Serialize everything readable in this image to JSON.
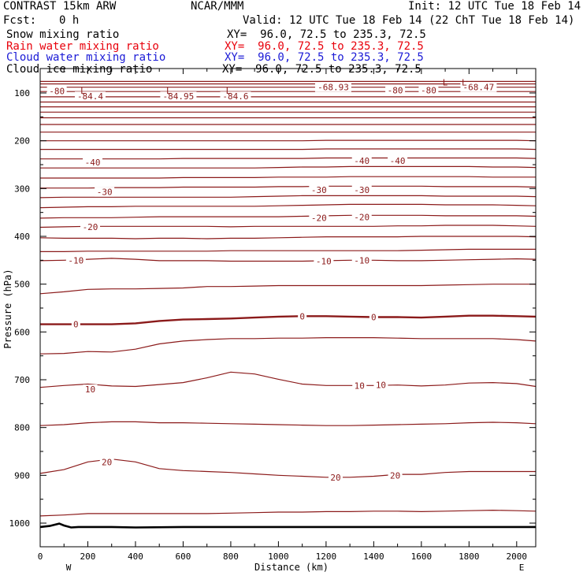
{
  "header": {
    "model": "CONTRAST 15km ARW",
    "org": "NCAR/MMM",
    "init": "Init: 12 UTC Tue 18 Feb 14",
    "fcst_label": "Fcst:",
    "fcst_value": "0 h",
    "valid": "Valid: 12 UTC Tue 18 Feb 14 (22 ChT Tue 18 Feb 14)",
    "fields": [
      {
        "name": "Snow mixing ratio",
        "xy": "XY=  96.0, 72.5 to 235.3, 72.5",
        "color": "#000000"
      },
      {
        "name": "Rain water mixing ratio",
        "xy": "XY=  96.0, 72.5 to 235.3, 72.5",
        "color": "#e8000b"
      },
      {
        "name": "Cloud water mixing ratio",
        "xy": "XY=  96.0, 72.5 to 235.3, 72.5",
        "color": "#1a1ad6"
      },
      {
        "name": "Cloud ice mixing ratio",
        "xy": "XY=  96.0, 72.5 to 235.3, 72.5",
        "color": "#000000"
      }
    ]
  },
  "chart_data": {
    "type": "line",
    "xlabel": "Distance (km)",
    "ylabel": "Pressure (hPa)",
    "xlim": [
      0,
      2080
    ],
    "ylim": [
      1050,
      70
    ],
    "x_ticks": [
      0,
      200,
      400,
      600,
      800,
      1000,
      1200,
      1400,
      1600,
      1800,
      2000
    ],
    "y_ticks": [
      100,
      200,
      300,
      400,
      500,
      600,
      700,
      800,
      900,
      1000
    ],
    "endpoints": {
      "left": "W",
      "right": "E"
    },
    "contour_color": "#8b1a1a",
    "terrain_color": "#000000",
    "contour_x": [
      0,
      100,
      200,
      300,
      400,
      500,
      600,
      700,
      800,
      900,
      1000,
      1100,
      1200,
      1300,
      1400,
      1500,
      1600,
      1700,
      1800,
      1900,
      2000,
      2080
    ],
    "contours": [
      {
        "value": "20",
        "p": [
          985,
          983,
          980,
          980,
          980,
          980,
          980,
          980,
          979,
          978,
          977,
          977,
          976,
          976,
          975,
          975,
          976,
          975,
          974,
          973,
          974,
          975
        ]
      },
      {
        "value": "20",
        "p": [
          896,
          888,
          872,
          866,
          872,
          886,
          890,
          892,
          894,
          897,
          900,
          902,
          904,
          904,
          902,
          898,
          898,
          894,
          892,
          892,
          892,
          892
        ]
      },
      {
        "value": "10",
        "p": [
          796,
          794,
          790,
          788,
          788,
          790,
          790,
          791,
          792,
          793,
          794,
          795,
          796,
          796,
          795,
          794,
          793,
          792,
          790,
          789,
          790,
          792
        ]
      },
      {
        "value": "10",
        "p": [
          716,
          712,
          709,
          713,
          714,
          710,
          706,
          696,
          684,
          688,
          699,
          709,
          712,
          712,
          712,
          711,
          713,
          711,
          707,
          706,
          708,
          714
        ]
      },
      {
        "value": "",
        "p": [
          646,
          645,
          641,
          642,
          636,
          625,
          619,
          616,
          614,
          614,
          613,
          613,
          612,
          612,
          612,
          613,
          614,
          614,
          614,
          614,
          616,
          619
        ]
      },
      {
        "value": "0",
        "p": [
          584,
          584,
          584,
          584,
          582,
          577,
          574,
          573,
          572,
          570,
          568,
          567,
          567,
          568,
          569,
          569,
          570,
          568,
          566,
          566,
          567,
          568
        ]
      },
      {
        "value": "",
        "p": [
          520,
          516,
          511,
          510,
          510,
          509,
          508,
          505,
          505,
          504,
          503,
          503,
          503,
          503,
          503,
          503,
          503,
          502,
          501,
          500,
          500,
          500
        ]
      },
      {
        "value": "-10",
        "p": [
          451,
          450,
          448,
          446,
          448,
          451,
          451,
          451,
          452,
          452,
          452,
          452,
          451,
          450,
          450,
          451,
          451,
          450,
          449,
          448,
          447,
          448
        ]
      },
      {
        "value": "",
        "p": [
          432,
          432,
          431,
          431,
          431,
          431,
          431,
          431,
          430,
          430,
          430,
          430,
          430,
          430,
          430,
          430,
          429,
          428,
          427,
          427,
          427,
          427
        ]
      },
      {
        "value": "-20",
        "p": [
          403,
          404,
          404,
          404,
          405,
          404,
          404,
          405,
          404,
          404,
          403,
          402,
          401,
          401,
          401,
          401,
          400,
          400,
          400,
          400,
          400,
          401
        ]
      },
      {
        "value": "",
        "p": [
          381,
          380,
          379,
          379,
          379,
          379,
          379,
          379,
          380,
          379,
          379,
          379,
          379,
          379,
          379,
          378,
          378,
          377,
          377,
          377,
          378,
          379
        ]
      },
      {
        "value": "-20",
        "p": [
          362,
          361,
          361,
          361,
          360,
          359,
          359,
          359,
          359,
          359,
          359,
          358,
          357,
          356,
          356,
          356,
          356,
          357,
          357,
          357,
          357,
          358
        ]
      },
      {
        "value": "-30",
        "p": [
          340,
          339,
          338,
          338,
          337,
          337,
          337,
          337,
          337,
          337,
          336,
          335,
          334,
          333,
          333,
          333,
          333,
          334,
          334,
          334,
          335,
          336
        ]
      },
      {
        "value": "",
        "p": [
          319,
          318,
          318,
          318,
          318,
          318,
          318,
          318,
          318,
          317,
          316,
          315,
          315,
          315,
          315,
          315,
          315,
          316,
          316,
          316,
          316,
          317
        ]
      },
      {
        "value": "-30",
        "p": [
          299,
          299,
          299,
          298,
          298,
          298,
          297,
          297,
          297,
          297,
          296,
          296,
          295,
          295,
          295,
          295,
          295,
          296,
          296,
          296,
          296,
          297
        ]
      },
      {
        "value": "",
        "p": [
          278,
          278,
          278,
          278,
          278,
          278,
          277,
          277,
          277,
          277,
          276,
          276,
          276,
          275,
          275,
          275,
          275,
          275,
          275,
          276,
          276,
          276
        ]
      },
      {
        "value": "-40",
        "p": [
          257,
          257,
          257,
          257,
          257,
          257,
          257,
          257,
          257,
          257,
          256,
          255,
          255,
          254,
          254,
          254,
          254,
          254,
          254,
          255,
          255,
          256
        ]
      },
      {
        "value": "-40",
        "p": [
          238,
          238,
          238,
          238,
          238,
          238,
          237,
          237,
          237,
          237,
          237,
          237,
          236,
          236,
          236,
          236,
          236,
          236,
          236,
          236,
          236,
          237
        ]
      },
      {
        "value": "",
        "p": [
          218,
          218,
          218,
          218,
          218,
          218,
          218,
          218,
          218,
          218,
          218,
          218,
          217,
          217,
          217,
          217,
          217,
          217,
          217,
          217,
          217,
          218
        ]
      },
      {
        "value": "",
        "p": [
          200,
          200,
          200,
          200,
          200,
          200,
          200,
          200,
          200,
          200,
          200,
          200,
          199,
          199,
          199,
          199,
          199,
          199,
          199,
          199,
          199,
          200
        ]
      },
      {
        "value": "",
        "p": [
          182,
          182,
          182,
          182,
          182,
          182,
          182,
          182,
          182,
          182,
          182,
          182,
          182,
          182,
          182,
          182,
          182,
          182,
          182,
          182,
          182,
          182
        ]
      },
      {
        "value": "",
        "p": [
          166,
          166,
          166,
          166,
          166,
          166,
          166,
          166,
          166,
          166,
          166,
          166,
          166,
          166,
          166,
          166,
          166,
          166,
          166,
          166,
          166,
          166
        ]
      },
      {
        "value": "",
        "p": [
          152,
          152,
          152,
          152,
          152,
          152,
          152,
          152,
          152,
          152,
          152,
          152,
          152,
          152,
          152,
          152,
          152,
          152,
          152,
          152,
          152,
          152
        ]
      },
      {
        "value": "",
        "p": [
          140,
          140,
          140,
          140,
          140,
          140,
          140,
          140,
          140,
          140,
          140,
          140,
          140,
          140,
          140,
          140,
          140,
          140,
          140,
          140,
          140,
          140
        ]
      },
      {
        "value": "",
        "p": [
          129,
          129,
          129,
          129,
          129,
          129,
          129,
          129,
          129,
          129,
          129,
          129,
          129,
          129,
          129,
          129,
          129,
          129,
          129,
          129,
          129,
          129
        ]
      },
      {
        "value": "",
        "p": [
          119,
          119,
          119,
          119,
          119,
          119,
          119,
          119,
          119,
          119,
          119,
          119,
          119,
          119,
          119,
          119,
          119,
          119,
          119,
          119,
          119,
          119
        ]
      },
      {
        "value": "-80",
        "p": [
          108,
          108,
          108,
          108,
          108,
          108,
          108,
          108,
          108,
          108,
          108,
          108,
          108,
          108,
          108,
          108,
          108,
          108,
          108,
          108,
          108,
          108
        ]
      },
      {
        "value": "",
        "p": [
          97,
          97,
          97,
          97,
          97,
          97,
          97,
          97,
          97,
          97,
          97,
          97,
          97,
          97,
          97,
          97,
          97,
          97,
          97,
          97,
          97,
          97
        ]
      },
      {
        "value": "",
        "p": [
          88,
          88,
          88,
          88,
          88,
          88,
          88,
          88,
          88,
          88,
          88,
          88,
          88,
          88,
          88,
          88,
          88,
          88,
          88,
          88,
          88,
          88
        ]
      },
      {
        "value": "",
        "p": [
          81,
          81,
          81,
          81,
          81,
          81,
          81,
          81,
          81,
          81,
          81,
          81,
          81,
          81,
          81,
          81,
          81,
          81,
          81,
          81,
          81,
          81
        ]
      },
      {
        "value": "",
        "p": [
          76,
          76,
          76,
          76,
          76,
          76,
          76,
          76,
          76,
          76,
          76,
          76,
          76,
          76,
          76,
          76,
          76,
          76,
          76,
          76,
          76,
          76
        ]
      }
    ],
    "contour_labels": [
      {
        "text": "20",
        "x": 280,
        "p": 872
      },
      {
        "text": "20",
        "x": 1240,
        "p": 904
      },
      {
        "text": "20",
        "x": 1490,
        "p": 900
      },
      {
        "text": "10",
        "x": 210,
        "p": 720
      },
      {
        "text": "10",
        "x": 1340,
        "p": 712
      },
      {
        "text": "10",
        "x": 1430,
        "p": 711
      },
      {
        "text": "0",
        "x": 150,
        "p": 584
      },
      {
        "text": "0",
        "x": 1100,
        "p": 567
      },
      {
        "text": "0",
        "x": 1400,
        "p": 569
      },
      {
        "text": "-10",
        "x": 150,
        "p": 450
      },
      {
        "text": "-10",
        "x": 1190,
        "p": 452
      },
      {
        "text": "-10",
        "x": 1350,
        "p": 450
      },
      {
        "text": "-20",
        "x": 210,
        "p": 380
      },
      {
        "text": "-20",
        "x": 1170,
        "p": 361
      },
      {
        "text": "-20",
        "x": 1350,
        "p": 360
      },
      {
        "text": "-30",
        "x": 270,
        "p": 307
      },
      {
        "text": "-30",
        "x": 1170,
        "p": 303
      },
      {
        "text": "-30",
        "x": 1350,
        "p": 303
      },
      {
        "text": "-40",
        "x": 220,
        "p": 245
      },
      {
        "text": "-40",
        "x": 1350,
        "p": 242
      },
      {
        "text": "-40",
        "x": 1500,
        "p": 242
      },
      {
        "text": "-80",
        "x": 70,
        "p": 96
      },
      {
        "text": "-80",
        "x": 1490,
        "p": 94
      },
      {
        "text": "-80",
        "x": 1630,
        "p": 94
      },
      {
        "text": "-84.4",
        "x": 210,
        "p": 107
      },
      {
        "text": "-84.95",
        "x": 580,
        "p": 107
      },
      {
        "text": "-84.6",
        "x": 820,
        "p": 107
      },
      {
        "text": "-68.93",
        "x": 1230,
        "p": 88
      },
      {
        "text": "-68.47",
        "x": 1840,
        "p": 88
      }
    ],
    "lows": [
      {
        "text": "L",
        "x": 180,
        "p": 95
      },
      {
        "text": "L",
        "x": 540,
        "p": 95
      },
      {
        "text": "L",
        "x": 790,
        "p": 95
      },
      {
        "text": "L",
        "x": 1700,
        "p": 78
      },
      {
        "text": "L",
        "x": 1780,
        "p": 78
      }
    ],
    "terrain": {
      "x": [
        0,
        40,
        80,
        100,
        130,
        160,
        200,
        300,
        400,
        600,
        800,
        1000,
        1200,
        1400,
        1600,
        1800,
        2000,
        2080
      ],
      "p": [
        1008,
        1006,
        1001,
        1005,
        1009,
        1008,
        1008,
        1008,
        1009,
        1008,
        1008,
        1008,
        1008,
        1008,
        1008,
        1008,
        1008,
        1008
      ]
    }
  }
}
